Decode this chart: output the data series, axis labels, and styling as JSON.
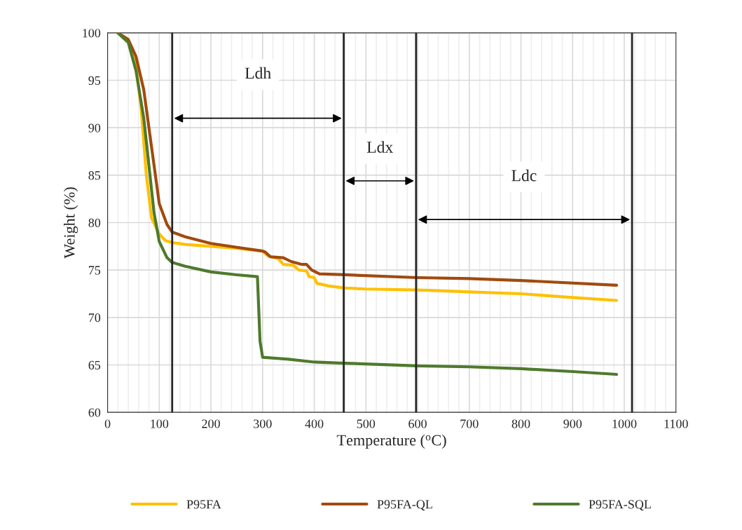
{
  "chart_data": {
    "type": "line",
    "xlabel": "Temperature ($^{o}$C)",
    "ylabel": "Weight (%)",
    "xlim": [
      0,
      1100
    ],
    "xticks": [
      0,
      100,
      200,
      300,
      400,
      500,
      600,
      700,
      800,
      900,
      1000,
      1100
    ],
    "ylim": [
      60,
      100
    ],
    "yticks": [
      60,
      65,
      70,
      75,
      80,
      85,
      90,
      95,
      100
    ],
    "grid": true,
    "legend": "bottom",
    "marker": "none",
    "line_style": "solid",
    "series": [
      {
        "name": "P95FA",
        "color": "#ffc000",
        "x": [
          20,
          40,
          55,
          65,
          75,
          85,
          100,
          112,
          125,
          150,
          200,
          250,
          300,
          310,
          330,
          340,
          360,
          370,
          385,
          390,
          400,
          405,
          430,
          460,
          500,
          600,
          650,
          700,
          800,
          900,
          985
        ],
        "values": [
          100,
          99,
          96.5,
          92,
          85,
          80.5,
          78.8,
          78.1,
          77.9,
          77.7,
          77.5,
          77.3,
          77.0,
          76.5,
          76.2,
          75.6,
          75.5,
          75.0,
          74.9,
          74.3,
          74.2,
          73.6,
          73.3,
          73.1,
          73.0,
          72.9,
          72.8,
          72.7,
          72.5,
          72.1,
          71.8
        ]
      },
      {
        "name": "P95FA-QL",
        "color": "#a14a0f",
        "x": [
          20,
          40,
          55,
          70,
          85,
          100,
          115,
          125,
          150,
          200,
          250,
          300,
          305,
          315,
          340,
          355,
          375,
          385,
          395,
          410,
          460,
          600,
          700,
          800,
          985
        ],
        "values": [
          100,
          99.3,
          97.5,
          94,
          88,
          82,
          79.8,
          79,
          78.5,
          77.8,
          77.4,
          77.0,
          76.9,
          76.4,
          76.3,
          75.9,
          75.6,
          75.6,
          75.0,
          74.6,
          74.5,
          74.2,
          74.1,
          73.9,
          73.4
        ]
      },
      {
        "name": "P95FA-SQL",
        "color": "#4e7a2c",
        "x": [
          20,
          40,
          55,
          70,
          80,
          90,
          100,
          115,
          125,
          150,
          200,
          250,
          290,
          295,
          300,
          350,
          400,
          450,
          600,
          700,
          800,
          900,
          985
        ],
        "values": [
          100,
          99,
          96,
          91,
          86,
          81,
          78,
          76.3,
          75.8,
          75.4,
          74.8,
          74.5,
          74.3,
          67.5,
          65.8,
          65.6,
          65.3,
          65.2,
          64.9,
          64.8,
          64.6,
          64.3,
          64.0
        ]
      }
    ],
    "ref_lines": [
      {
        "axis": "x",
        "value": 125,
        "color": "#262626"
      },
      {
        "axis": "x",
        "value": 457,
        "color": "#262626"
      },
      {
        "axis": "x",
        "value": 597,
        "color": "#262626"
      },
      {
        "axis": "x",
        "value": 1015,
        "color": "#262626"
      }
    ],
    "annotations": [
      "Ldh",
      "Ldx",
      "Ldc"
    ]
  }
}
